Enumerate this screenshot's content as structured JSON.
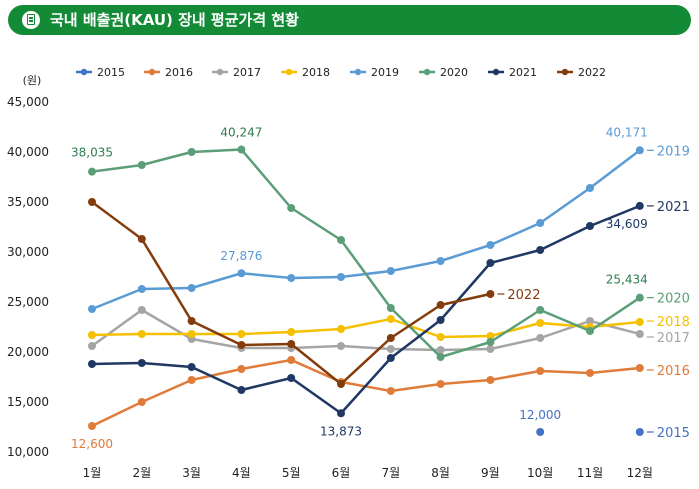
{
  "header": {
    "title": "국내 배출권(KAU) 장내 평균가격 현황",
    "icon": "document-icon"
  },
  "chart_data": {
    "type": "line",
    "unit": "(원)",
    "categories": [
      "1월",
      "2월",
      "3월",
      "4월",
      "5월",
      "6월",
      "7월",
      "8월",
      "9월",
      "10월",
      "11월",
      "12월"
    ],
    "ylim": [
      10000,
      45000
    ],
    "yticks": [
      "10,000",
      "15,000",
      "20,000",
      "25,000",
      "30,000",
      "35,000",
      "40,000",
      "45,000"
    ],
    "ytick_values": [
      10000,
      15000,
      20000,
      25000,
      30000,
      35000,
      40000,
      45000
    ],
    "grid": false,
    "legend_placement": "top",
    "series": [
      {
        "name": "2015",
        "color": "#4472c4",
        "end_label": "2015",
        "values": [
          null,
          null,
          null,
          null,
          null,
          null,
          null,
          null,
          null,
          12000,
          null,
          12000
        ]
      },
      {
        "name": "2016",
        "color": "#e07b39",
        "end_label": "2016",
        "values": [
          12600,
          15000,
          17200,
          18300,
          19200,
          17000,
          16100,
          16800,
          17200,
          18100,
          17900,
          18400
        ]
      },
      {
        "name": "2017",
        "color": "#a5a5a5",
        "end_label": "2017",
        "values": [
          20600,
          24200,
          21300,
          20400,
          20400,
          20600,
          20300,
          20200,
          20300,
          21400,
          23100,
          21800
        ]
      },
      {
        "name": "2018",
        "color": "#f5c000",
        "end_label": "2018",
        "values": [
          21700,
          21800,
          21800,
          21800,
          22000,
          22300,
          23300,
          21500,
          21600,
          22900,
          22500,
          23000
        ]
      },
      {
        "name": "2019",
        "color": "#5b9bd5",
        "end_label": "2019",
        "values": [
          24300,
          26300,
          26400,
          27876,
          27400,
          27500,
          28100,
          29100,
          30700,
          32900,
          36400,
          40171
        ]
      },
      {
        "name": "2020",
        "color": "#5b9e78",
        "end_label": "2020",
        "values": [
          38035,
          38700,
          40000,
          40247,
          34400,
          31200,
          24400,
          19500,
          21000,
          24200,
          22100,
          25434
        ]
      },
      {
        "name": "2021",
        "color": "#1f3864",
        "end_label": "2021",
        "values": [
          18800,
          18900,
          18500,
          16200,
          17400,
          13873,
          19400,
          23200,
          28900,
          30200,
          32600,
          34609
        ]
      },
      {
        "name": "2022",
        "color": "#843c0c",
        "end_label": "2022",
        "values": [
          35000,
          31300,
          23100,
          20700,
          20800,
          16800,
          21400,
          24700,
          25800,
          null,
          null,
          null
        ]
      }
    ],
    "annotations": [
      {
        "series": "2016",
        "index": 0,
        "text": "12,600",
        "color": "#e07b39"
      },
      {
        "series": "2020",
        "index": 0,
        "text": "38,035",
        "color": "#2e7d4f"
      },
      {
        "series": "2020",
        "index": 3,
        "text": "40,247",
        "color": "#2e7d4f"
      },
      {
        "series": "2019",
        "index": 3,
        "text": "27,876",
        "color": "#5b9bd5"
      },
      {
        "series": "2021",
        "index": 5,
        "text": "13,873",
        "color": "#1f3864"
      },
      {
        "series": "2015",
        "index": 9,
        "text": "12,000",
        "color": "#4472c4"
      },
      {
        "series": "2019",
        "index": 11,
        "text": "40,171",
        "color": "#5b9bd5"
      },
      {
        "series": "2021",
        "index": 11,
        "text": "34,609",
        "color": "#1f3864"
      },
      {
        "series": "2020",
        "index": 11,
        "text": "25,434",
        "color": "#2e7d4f"
      }
    ]
  }
}
